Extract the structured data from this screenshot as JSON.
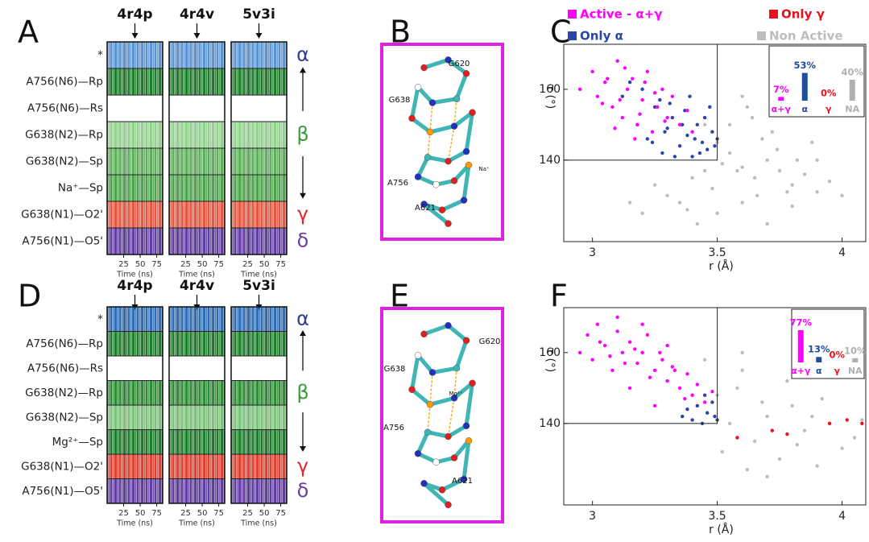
{
  "panels": [
    {
      "type": "barcode",
      "label": "A",
      "columns": [
        "4r4p",
        "4r4v",
        "5v3i"
      ],
      "rows": [
        {
          "label": "*",
          "color": "#5b93cf"
        },
        {
          "label": "A756(N6)—Rp",
          "color": "#1e7b2c"
        },
        {
          "label": "A756(N6)—Rs",
          "color": "#ffffff"
        },
        {
          "label": "G638(N2)—Rp",
          "color": "#93cf8e"
        },
        {
          "label": "G638(N2)—Sp",
          "color": "#5fae5c"
        },
        {
          "label": "Na⁺—Sp",
          "color": "#4ea24e"
        },
        {
          "label": "G638(N1)—O2'",
          "color": "#e8563f"
        },
        {
          "label": "A756(N1)—O5'",
          "color": "#5e3d9c"
        }
      ],
      "groups": [
        {
          "label": "α",
          "color": "#2f3e95"
        },
        {
          "label": "β",
          "color": "#3c9a3c"
        },
        {
          "label": "γ",
          "color": "#e3262d"
        },
        {
          "label": "δ",
          "color": "#6b3f9f"
        }
      ],
      "xlabel": "Time (ns)",
      "xlim": [
        0,
        84
      ],
      "xticks": [
        25,
        50,
        75
      ]
    },
    {
      "type": "structure",
      "label": "B",
      "labels": [
        "G620",
        "G638",
        "Na⁺",
        "A756",
        "A621"
      ]
    },
    {
      "type": "scatter",
      "label": "C",
      "xlabel": "r (Å)",
      "ylabel": "τ (°)",
      "xlim": [
        2.885,
        4.095
      ],
      "ylim": [
        117,
        172.7
      ],
      "xticks": [
        3,
        3.5,
        4
      ],
      "yticks": [
        140,
        160
      ],
      "active_region": {
        "xmax": 3.5,
        "ymin": 140
      },
      "series": [
        {
          "name": "Non Active",
          "color": "#bdbdbd",
          "x": [
            3.45,
            3.5,
            3.55,
            3.6,
            3.65,
            3.7,
            3.75,
            3.8,
            3.85,
            3.9,
            3.95,
            4.0,
            3.3,
            3.35,
            3.4,
            3.5,
            3.6,
            3.7,
            3.8,
            3.55,
            3.62,
            3.68,
            3.74,
            3.48,
            3.58,
            3.66,
            3.9,
            3.2,
            3.25,
            3.15,
            3.42,
            3.52,
            3.72,
            3.82,
            3.6,
            3.45,
            3.38,
            3.64,
            3.78,
            3.88
          ],
          "y": [
            150,
            145,
            142,
            138,
            135,
            140,
            137,
            133,
            136,
            131,
            134,
            130,
            130,
            128,
            135,
            125,
            128,
            122,
            127,
            150,
            155,
            146,
            143,
            132,
            137,
            130,
            140,
            125,
            133,
            128,
            122,
            139,
            148,
            140,
            158,
            137,
            126,
            152,
            131,
            145
          ]
        },
        {
          "name": "Only α",
          "color": "#2b45a8",
          "x": [
            3.12,
            3.18,
            3.22,
            3.25,
            3.28,
            3.3,
            3.32,
            3.35,
            3.38,
            3.4,
            3.42,
            3.44,
            3.46,
            3.48,
            3.5,
            3.2,
            3.27,
            3.33,
            3.37,
            3.41,
            3.45,
            3.49,
            3.15,
            3.24,
            3.31,
            3.36,
            3.43,
            3.47,
            3.29,
            3.39
          ],
          "y": [
            158,
            150,
            146,
            155,
            142,
            149,
            152,
            144,
            147,
            141,
            150,
            145,
            143,
            148,
            146,
            160,
            157,
            141,
            154,
            146,
            152,
            144,
            162,
            145,
            156,
            150,
            142,
            155,
            148,
            158
          ]
        },
        {
          "name": "Active - α+γ",
          "color": "#ff00ff",
          "x": [
            2.95,
            3.0,
            3.02,
            3.05,
            3.08,
            3.1,
            3.12,
            3.14,
            3.16,
            3.18,
            3.2,
            3.22,
            3.24,
            3.26,
            3.28,
            3.3,
            3.32,
            3.35,
            3.38,
            3.4,
            3.04,
            3.09,
            3.13,
            3.17,
            3.21,
            3.25,
            3.29,
            3.06,
            3.11,
            3.19
          ],
          "y": [
            160,
            165,
            158,
            162,
            155,
            168,
            152,
            160,
            163,
            150,
            157,
            165,
            148,
            155,
            160,
            152,
            158,
            150,
            154,
            148,
            156,
            149,
            166,
            146,
            162,
            159,
            151,
            163,
            157,
            153
          ]
        },
        {
          "name": "Only γ",
          "color": "#e8101a",
          "x": [],
          "y": []
        }
      ],
      "inset": {
        "categories": [
          "α+γ",
          "α",
          "γ",
          "NA"
        ],
        "colors": [
          "#ff00ff",
          "#1f4e9c",
          "#e8101a",
          "#b0b0b0"
        ],
        "values": [
          7,
          53,
          0,
          40
        ],
        "value_labels": [
          "7%",
          "53%",
          "0%",
          "40%"
        ],
        "ylim": [
          0,
          80
        ]
      }
    },
    {
      "type": "barcode",
      "label": "D",
      "columns": [
        "4r4p",
        "4r4v",
        "5v3i"
      ],
      "rows": [
        {
          "label": "*",
          "color": "#2f6bb0"
        },
        {
          "label": "A756(N6)—Rp",
          "color": "#1e7b2c"
        },
        {
          "label": "A756(N6)—Rs",
          "color": "#ffffff"
        },
        {
          "label": "G638(N2)—Rp",
          "color": "#2f8a36"
        },
        {
          "label": "G638(N2)—Sp",
          "color": "#7cc07a"
        },
        {
          "label": "Mg²⁺—Sp",
          "color": "#1e7b2c"
        },
        {
          "label": "G638(N1)—O2'",
          "color": "#e04030"
        },
        {
          "label": "A756(N1)—O5'",
          "color": "#5e3d9c"
        }
      ],
      "groups": [
        {
          "label": "α",
          "color": "#2f3e95"
        },
        {
          "label": "β",
          "color": "#3c9a3c"
        },
        {
          "label": "γ",
          "color": "#e3262d"
        },
        {
          "label": "δ",
          "color": "#6b3f9f"
        }
      ],
      "xlabel": "Time (ns)",
      "xlim": [
        0,
        84
      ],
      "xticks": [
        25,
        50,
        75
      ]
    },
    {
      "type": "structure",
      "label": "E",
      "labels": [
        "G620",
        "G638",
        "Mg²⁺",
        "A756",
        "A621"
      ]
    },
    {
      "type": "scatter",
      "label": "F",
      "xlabel": "r (Å)",
      "ylabel": "τ (°)",
      "xlim": [
        2.885,
        4.095
      ],
      "ylim": [
        117,
        172.7
      ],
      "xticks": [
        3,
        3.5,
        4
      ],
      "yticks": [
        140,
        160
      ],
      "active_region": {
        "xmax": 3.5,
        "ymin": 140
      },
      "series": [
        {
          "color": "#bdbdbd",
          "x": [
            3.5,
            3.55,
            3.6,
            3.65,
            3.7,
            3.75,
            3.8,
            3.85,
            3.9,
            3.95,
            4.0,
            4.05,
            3.52,
            3.58,
            3.62,
            3.68,
            3.72,
            3.78,
            3.82,
            3.88,
            3.45,
            3.6,
            3.7,
            3.92,
            4.08
          ],
          "y": [
            148,
            140,
            155,
            135,
            142,
            130,
            145,
            138,
            128,
            140,
            133,
            136,
            132,
            150,
            127,
            146,
            138,
            152,
            134,
            142,
            158,
            160,
            125,
            147,
            141
          ]
        },
        {
          "color": "#2b45a8",
          "x": [
            3.36,
            3.4,
            3.42,
            3.44,
            3.46,
            3.48,
            3.5,
            3.38,
            3.45,
            3.49
          ],
          "y": [
            142,
            141,
            145,
            140,
            143,
            146,
            141,
            144,
            148,
            142
          ]
        },
        {
          "color": "#ff00ff",
          "x": [
            2.95,
            2.98,
            3.0,
            3.02,
            3.05,
            3.08,
            3.1,
            3.12,
            3.15,
            3.18,
            3.2,
            3.22,
            3.25,
            3.28,
            3.3,
            3.32,
            3.35,
            3.38,
            3.4,
            3.42,
            3.45,
            3.48,
            3.03,
            3.07,
            3.13,
            3.17,
            3.23,
            3.27,
            3.33,
            3.37,
            3.1,
            3.2,
            3.3,
            3.15,
            3.25
          ],
          "y": [
            160,
            165,
            158,
            168,
            162,
            155,
            166,
            160,
            163,
            157,
            160,
            165,
            155,
            158,
            152,
            156,
            150,
            154,
            148,
            151,
            146,
            149,
            163,
            159,
            157,
            161,
            153,
            160,
            155,
            147,
            170,
            168,
            162,
            150,
            145
          ]
        },
        {
          "color": "#e8101a",
          "x": [
            3.58,
            3.72,
            3.78,
            3.95,
            4.02,
            4.08
          ],
          "y": [
            136,
            138,
            137,
            140,
            141,
            140
          ]
        }
      ],
      "inset": {
        "categories": [
          "α+γ",
          "α",
          "γ",
          "NA"
        ],
        "colors": [
          "#ff00ff",
          "#1f4e9c",
          "#e8101a",
          "#b0b0b0"
        ],
        "values": [
          77,
          13,
          0,
          10
        ],
        "value_labels": [
          "77%",
          "13%",
          "0%",
          "10%"
        ],
        "ylim": [
          0,
          100
        ]
      }
    }
  ]
}
